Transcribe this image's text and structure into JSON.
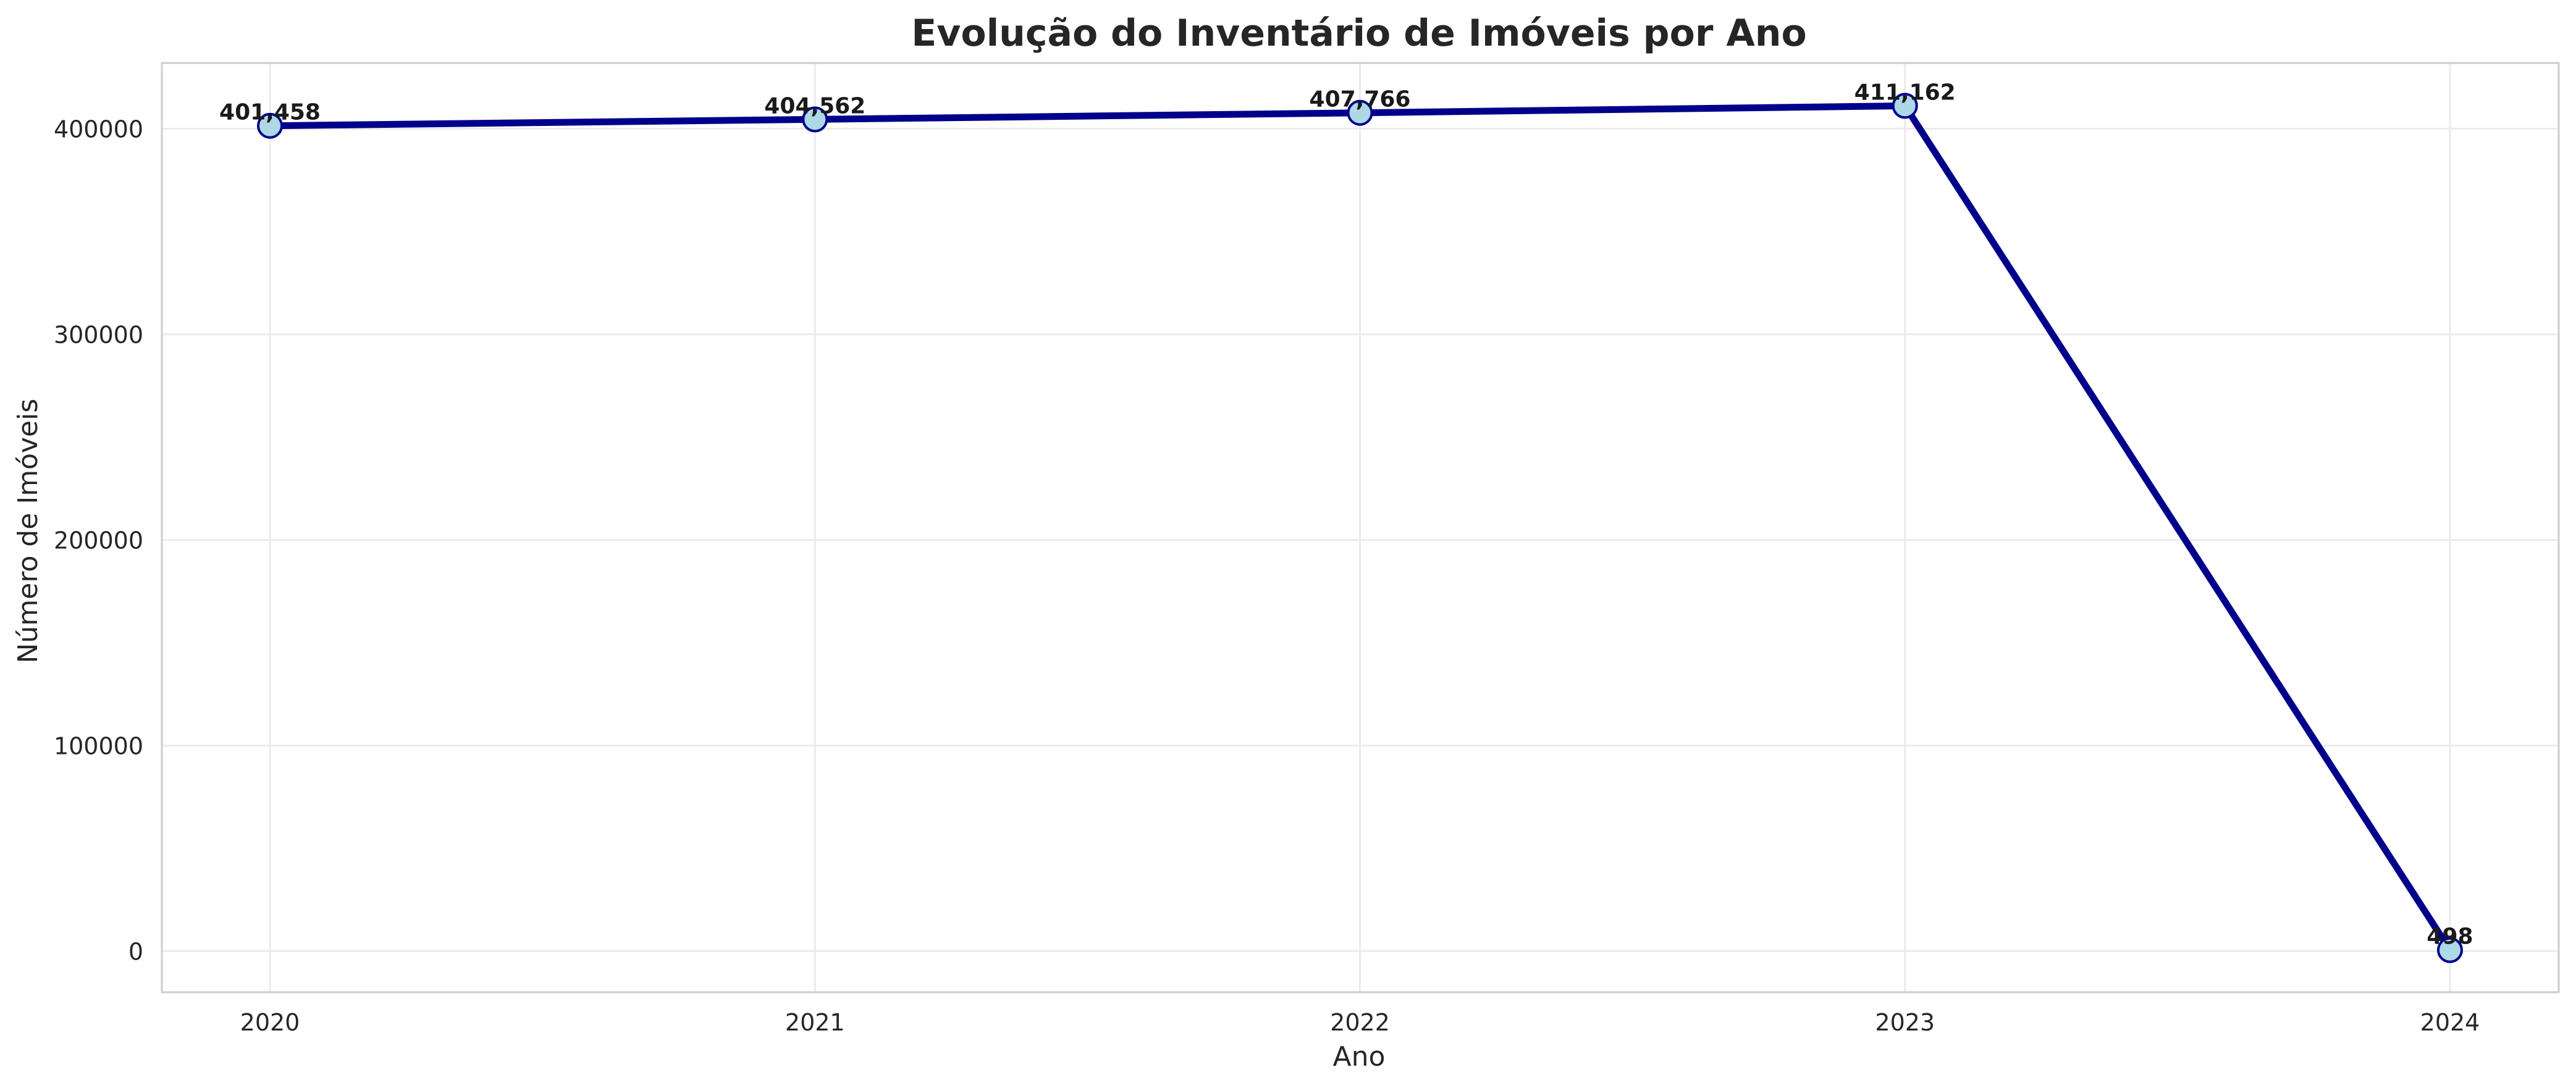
{
  "chart_data": {
    "type": "line",
    "title": "Evolução do Inventário de Imóveis por Ano",
    "xlabel": "Ano",
    "ylabel": "Número de Imóveis",
    "categories": [
      "2020",
      "2021",
      "2022",
      "2023",
      "2024"
    ],
    "series": [
      {
        "values": [
          401458,
          404562,
          407766,
          411162,
          498
        ],
        "data_labels": [
          "401,458",
          "404,562",
          "407,766",
          "411,162",
          "498"
        ]
      }
    ],
    "ylim": [
      -20000,
      432000
    ],
    "yticks": [
      0,
      100000,
      200000,
      300000,
      400000
    ],
    "ytick_labels": [
      "0",
      "100000",
      "200000",
      "300000",
      "400000"
    ],
    "grid": true,
    "colors": {
      "line": "#00008b",
      "marker_fill": "#add8e6",
      "marker_edge": "#00008b",
      "grid": "#ebebeb",
      "frame": "#cccccc"
    }
  }
}
